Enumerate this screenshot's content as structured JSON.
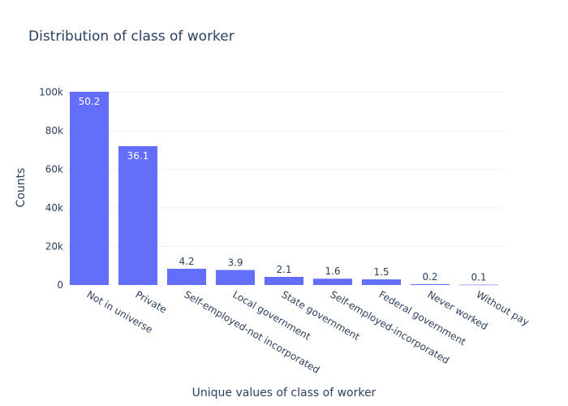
{
  "chart_data": {
    "type": "bar",
    "title": "Distribution of class of worker",
    "xlabel": "Unique values of class of worker",
    "ylabel": "Counts",
    "categories": [
      "Not in universe",
      "Private",
      "Self-employed-not incorporated",
      "Local government",
      "State government",
      "Self-employed-incorporated",
      "Federal government",
      "Never worked",
      "Without pay"
    ],
    "values": [
      100245,
      72028,
      8445,
      7784,
      4227,
      3265,
      2925,
      439,
      165
    ],
    "data_labels": [
      "50.2",
      "36.1",
      "4.2",
      "3.9",
      "2.1",
      "1.6",
      "1.5",
      "0.2",
      "0.1"
    ],
    "ylim": [
      0,
      100245
    ],
    "y_ticks": [
      0,
      20000,
      40000,
      60000,
      80000,
      100000
    ],
    "y_tick_labels": [
      "0",
      "20k",
      "40k",
      "60k",
      "80k",
      "100k"
    ],
    "grid": true,
    "legend": "none",
    "colors": {
      "bar": "#636efa",
      "grid": "#ebf0f8",
      "text": "#2a3f5f",
      "label_inside": "#ffffff",
      "label_outside": "#2a3f5f"
    }
  }
}
